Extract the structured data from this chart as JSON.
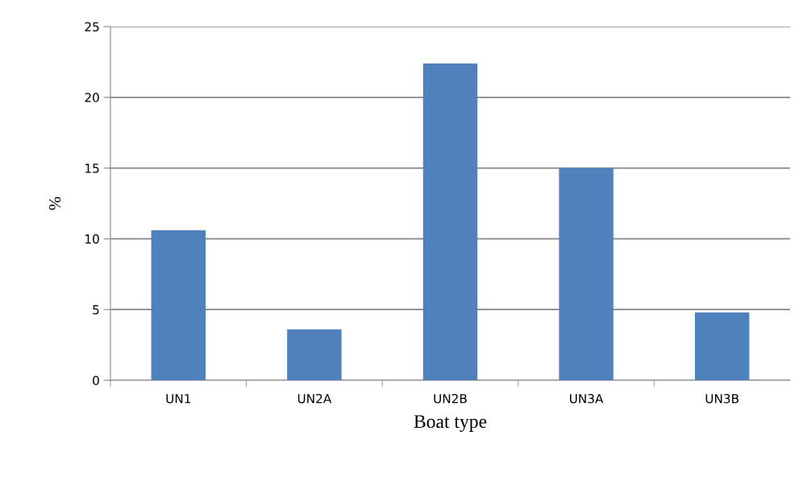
{
  "chart_data": {
    "type": "bar",
    "xlabel": "Boat type",
    "ylabel": "%",
    "categories": [
      "UN1",
      "UN2A",
      "UN2B",
      "UN3A",
      "UN3B"
    ],
    "values": [
      10.6,
      3.6,
      22.4,
      15.0,
      4.8
    ],
    "color": "#4f81bd",
    "ylim": [
      0,
      25
    ],
    "yticks": [
      0,
      5,
      10,
      15,
      20,
      25
    ],
    "grid": "y"
  }
}
